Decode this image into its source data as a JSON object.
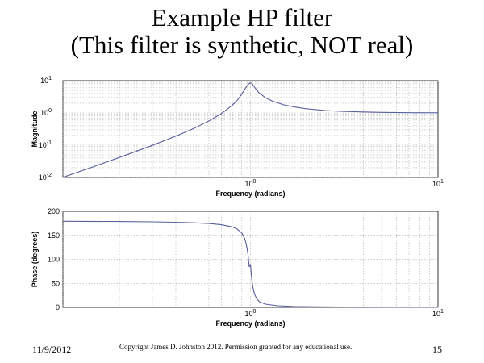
{
  "slide": {
    "title_line1": "Example HP filter",
    "title_line2": "(This filter is synthetic, NOT real)",
    "footer_date": "11/9/2012",
    "footer_copyright": "Copyright James D. Johnston 2012. Permission  granted for any educational use.",
    "footer_page": "15"
  },
  "chart_data": [
    {
      "type": "line",
      "title": "",
      "xlabel": "Frequency (radians)",
      "ylabel": "Magnitude",
      "x_scale": "log",
      "y_scale": "log",
      "xlim": [
        0.1,
        10
      ],
      "ylim": [
        0.01,
        10
      ],
      "x_tick_labels": [
        "10^0",
        "10^1"
      ],
      "y_tick_labels": [
        "10^-2",
        "10^-1",
        "10^0",
        "10^1"
      ],
      "grid": true,
      "line_color": "#5a5f9e",
      "series": [
        {
          "x": [
            0.1,
            0.15,
            0.2,
            0.3,
            0.4,
            0.5,
            0.6,
            0.7,
            0.8,
            0.85,
            0.9,
            0.93,
            0.96,
            0.98,
            1.0,
            1.02,
            1.05,
            1.1,
            1.2,
            1.3,
            1.5,
            1.7,
            2.0,
            2.5,
            3,
            4,
            5,
            7,
            10
          ],
          "y": [
            0.0101,
            0.0229,
            0.0417,
            0.0989,
            0.19,
            0.333,
            0.561,
            0.957,
            1.74,
            2.46,
            3.89,
            5.29,
            6.98,
            8.14,
            8.5,
            8.12,
            6.4,
            4.47,
            2.99,
            2.37,
            1.79,
            1.55,
            1.34,
            1.19,
            1.12,
            1.07,
            1.04,
            1.02,
            1.01
          ]
        }
      ]
    },
    {
      "type": "line",
      "title": "",
      "xlabel": "Frequency (radians)",
      "ylabel": "Phase (degrees)",
      "x_scale": "log",
      "y_scale": "linear",
      "xlim": [
        0.1,
        10
      ],
      "ylim": [
        0,
        200
      ],
      "x_tick_labels": [
        "10^0",
        "10^1"
      ],
      "y_ticks": [
        0,
        50,
        100,
        150,
        200
      ],
      "grid": true,
      "line_color": "#5a5f9e",
      "series": [
        {
          "x": [
            0.1,
            0.2,
            0.3,
            0.4,
            0.5,
            0.6,
            0.7,
            0.8,
            0.85,
            0.9,
            0.93,
            0.95,
            0.97,
            0.985,
            1.0,
            1.015,
            1.03,
            1.05,
            1.08,
            1.12,
            1.2,
            1.4,
            1.7,
            2,
            3,
            5,
            10
          ],
          "y": [
            179.4,
            178.8,
            178.1,
            177.3,
            176.2,
            174.6,
            172.1,
            167.5,
            163.1,
            154.7,
            144.2,
            131.7,
            111,
            84,
            90,
            60,
            42,
            28,
            17.6,
            11.2,
            6.7,
            3.4,
            1.9,
            1.3,
            0.64,
            0.32,
            0.15
          ]
        }
      ]
    }
  ]
}
